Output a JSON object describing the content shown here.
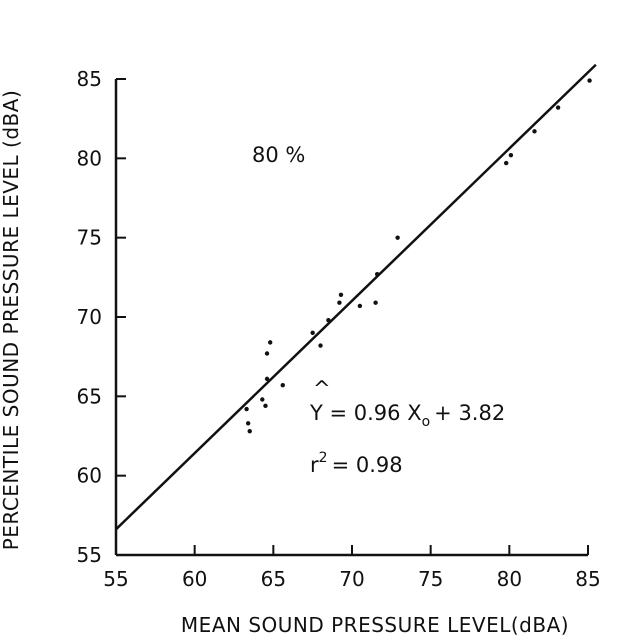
{
  "chart_data": {
    "type": "scatter",
    "title": "",
    "xlabel": "MEAN SOUND PRESSURE LEVEL(dBA)",
    "ylabel": "PERCENTILE SOUND PRESSURE LEVEL (dBA)",
    "xlim": [
      55,
      85
    ],
    "ylim": [
      55,
      85
    ],
    "xticks": [
      55,
      60,
      65,
      70,
      75,
      80,
      85
    ],
    "yticks": [
      55,
      60,
      65,
      70,
      75,
      80,
      85
    ],
    "grid": false,
    "series": [
      {
        "points": [
          [
            63.3,
            64.2
          ],
          [
            63.4,
            63.3
          ],
          [
            63.5,
            62.8
          ],
          [
            64.3,
            64.8
          ],
          [
            64.5,
            64.4
          ],
          [
            64.6,
            66.1
          ],
          [
            64.6,
            67.7
          ],
          [
            64.8,
            68.4
          ],
          [
            65.6,
            65.7
          ],
          [
            67.5,
            69.0
          ],
          [
            68.0,
            68.2
          ],
          [
            68.5,
            69.8
          ],
          [
            69.2,
            70.9
          ],
          [
            69.3,
            71.4
          ],
          [
            70.5,
            70.7
          ],
          [
            71.5,
            70.9
          ],
          [
            71.6,
            72.7
          ],
          [
            72.9,
            75.0
          ],
          [
            79.8,
            79.7
          ],
          [
            80.1,
            80.2
          ],
          [
            81.6,
            81.7
          ],
          [
            83.1,
            83.2
          ],
          [
            85.1,
            84.9
          ]
        ]
      }
    ],
    "regression": {
      "slope": 0.96,
      "intercept": 3.82,
      "x_range": [
        55,
        85.5
      ]
    },
    "annotations": {
      "percent": "80 %",
      "equation_lhs": "Y = 0.96 X",
      "equation_sub": "o",
      "equation_rhs": "+ 3.82",
      "r2_base": "r",
      "r2_exp": "2",
      "r2_value": "= 0.98"
    }
  }
}
